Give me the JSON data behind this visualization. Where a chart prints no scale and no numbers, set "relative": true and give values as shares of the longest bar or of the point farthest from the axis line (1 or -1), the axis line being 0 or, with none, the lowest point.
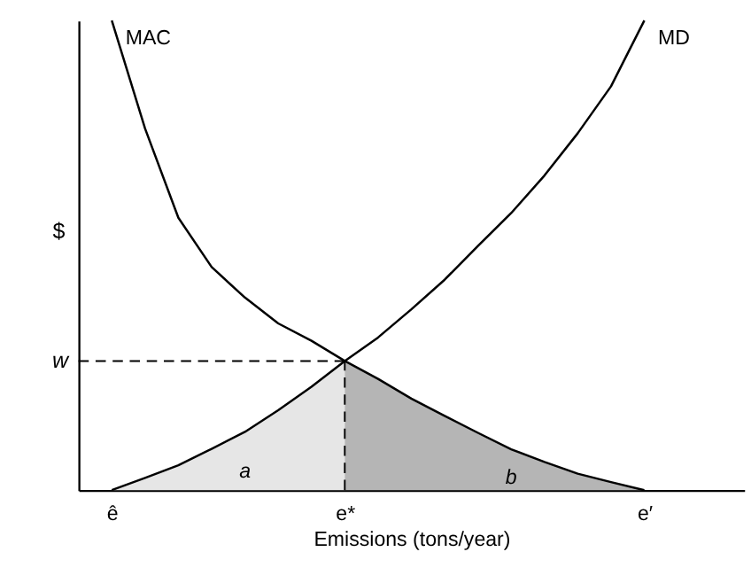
{
  "chart_data": {
    "type": "line",
    "relative": true,
    "xlabel": "Emissions (tons/year)",
    "ylabel": "$",
    "categories": [
      null,
      "ê",
      null,
      null,
      null,
      null,
      null,
      null,
      "e*",
      null,
      null,
      null,
      null,
      null,
      null,
      null,
      null,
      "e′",
      null,
      null,
      null
    ],
    "series": [
      {
        "name": "a",
        "type": "area",
        "color": "#e6e6e6",
        "values": [
          null,
          0,
          0.026,
          0.053,
          0.088,
          0.124,
          0.17,
          0.22,
          0.275,
          null,
          null,
          null,
          null,
          null,
          null,
          null,
          null,
          null,
          null,
          null,
          null
        ]
      },
      {
        "name": "b",
        "type": "area",
        "color": "#b5b5b5",
        "values": [
          null,
          null,
          null,
          null,
          null,
          null,
          null,
          null,
          0.275,
          0.237,
          0.195,
          0.158,
          0.122,
          0.087,
          0.06,
          0.035,
          0.017,
          0,
          null,
          null,
          null
        ]
      },
      {
        "name": "MD",
        "color": "#000000",
        "values": [
          null,
          0,
          0.026,
          0.053,
          0.088,
          0.124,
          0.17,
          0.22,
          0.275,
          0.325,
          0.385,
          0.448,
          0.52,
          0.59,
          0.67,
          0.76,
          0.86,
          1.0,
          null,
          null,
          null
        ]
      },
      {
        "name": "MAC",
        "color": "#000000",
        "values": [
          null,
          1.0,
          0.77,
          0.58,
          0.475,
          0.41,
          0.355,
          0.318,
          0.275,
          0.237,
          0.195,
          0.158,
          0.122,
          0.087,
          0.06,
          0.035,
          0.017,
          0,
          null,
          null,
          null
        ]
      }
    ],
    "ref_lines": [
      {
        "axis": "y",
        "value": 0.275,
        "label": "w",
        "color": "#000000",
        "line_style": "dashed"
      },
      {
        "axis": "x",
        "value": "e*",
        "color": "#000000",
        "line_style": "dashed"
      }
    ],
    "grid": false,
    "legend": false
  }
}
